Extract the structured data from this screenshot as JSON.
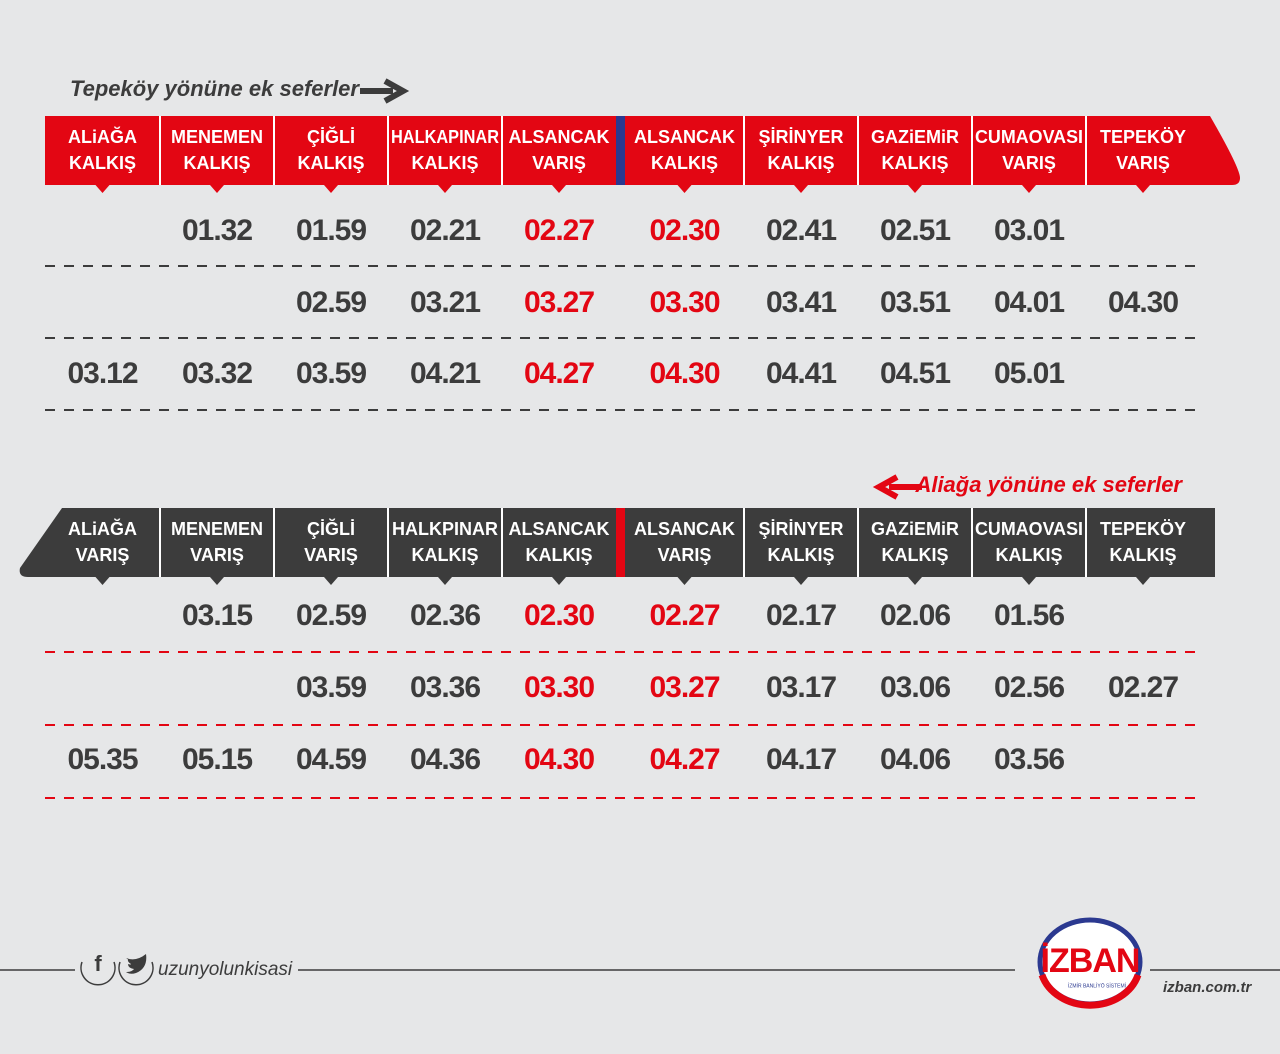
{
  "top": {
    "title": "Tepeköy yönüne ek seferler",
    "headers": [
      [
        "ALiAĞA",
        "KALKIŞ"
      ],
      [
        "MENEMEN",
        "KALKIŞ"
      ],
      [
        "ÇİĞLİ",
        "KALKIŞ"
      ],
      [
        "HALKAPINAR",
        "KALKIŞ"
      ],
      [
        "ALSANCAK",
        "VARIŞ"
      ],
      [
        "ALSANCAK",
        "KALKIŞ"
      ],
      [
        "ŞİRİNYER",
        "KALKIŞ"
      ],
      [
        "GAZiEMiR",
        "KALKIŞ"
      ],
      [
        "CUMAOVASI",
        "VARIŞ"
      ],
      [
        "TEPEKÖY",
        "VARIŞ"
      ]
    ],
    "rows": [
      [
        null,
        "01.32",
        "01.59",
        "02.21",
        "02.27",
        "02.30",
        "02.41",
        "02.51",
        "03.01",
        null
      ],
      [
        null,
        null,
        "02.59",
        "03.21",
        "03.27",
        "03.30",
        "03.41",
        "03.51",
        "04.01",
        "04.30"
      ],
      [
        "03.12",
        "03.32",
        "03.59",
        "04.21",
        "04.27",
        "04.30",
        "04.41",
        "04.51",
        "05.01",
        null
      ]
    ]
  },
  "bottom": {
    "title": "Aliağa yönüne ek seferler",
    "headers": [
      [
        "ALiAĞA",
        "VARIŞ"
      ],
      [
        "MENEMEN",
        "VARIŞ"
      ],
      [
        "ÇİĞLİ",
        "VARIŞ"
      ],
      [
        "HALKPINAR",
        "KALKIŞ"
      ],
      [
        "ALSANCAK",
        "KALKIŞ"
      ],
      [
        "ALSANCAK",
        "VARIŞ"
      ],
      [
        "ŞİRİNYER",
        "KALKIŞ"
      ],
      [
        "GAZiEMiR",
        "KALKIŞ"
      ],
      [
        "CUMAOVASI",
        "KALKIŞ"
      ],
      [
        "TEPEKÖY",
        "KALKIŞ"
      ]
    ],
    "rows": [
      [
        null,
        "03.15",
        "02.59",
        "02.36",
        "02.30",
        "02.27",
        "02.17",
        "02.06",
        "01.56",
        null
      ],
      [
        null,
        null,
        "03.59",
        "03.36",
        "03.30",
        "03.27",
        "03.17",
        "03.06",
        "02.56",
        "02.27"
      ],
      [
        "05.35",
        "05.15",
        "04.59",
        "04.36",
        "04.30",
        "04.27",
        "04.17",
        "04.06",
        "03.56",
        null
      ]
    ]
  },
  "footer": {
    "handle": "uzunyolunkisasi",
    "logo": "İZBAN",
    "logo_tagline": "İZMİR BANLİYÖ SİSTEMİ",
    "website": "izban.com.tr"
  }
}
